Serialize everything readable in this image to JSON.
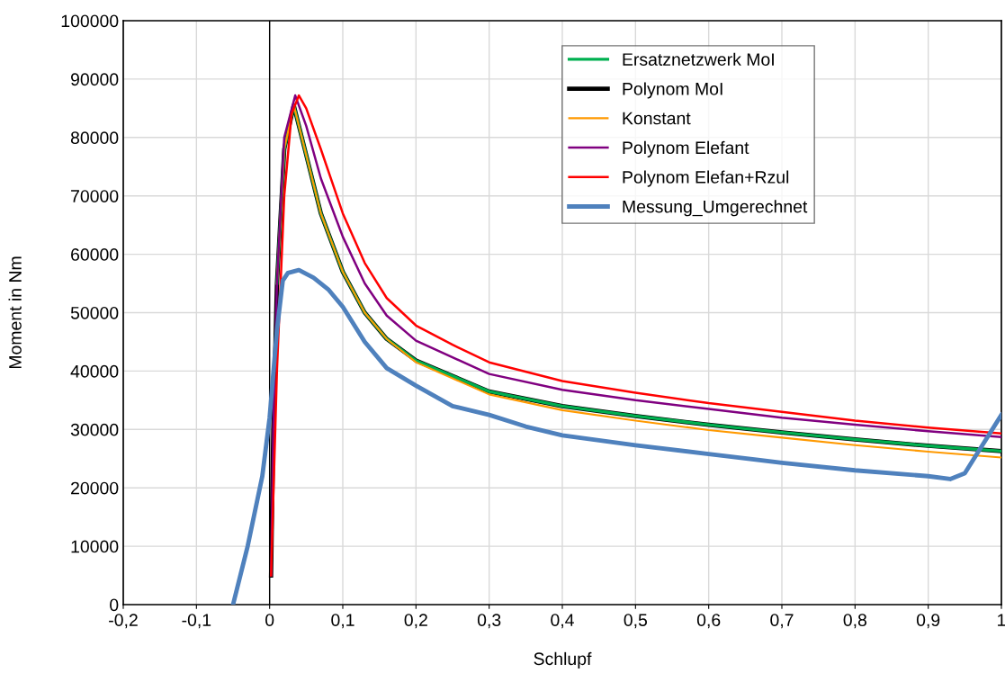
{
  "chart_data": {
    "type": "line",
    "xlabel": "Schlupf",
    "ylabel": "Moment in Nm",
    "xlim": [
      -0.2,
      1
    ],
    "ylim": [
      0,
      100000
    ],
    "xticks": [
      {
        "value": -0.2,
        "label": "-0,2"
      },
      {
        "value": -0.1,
        "label": "-0,1"
      },
      0,
      {
        "value": 0.1,
        "label": "0,1"
      },
      {
        "value": 0.2,
        "label": "0,2"
      },
      {
        "value": 0.3,
        "label": "0,3"
      },
      {
        "value": 0.4,
        "label": "0,4"
      },
      {
        "value": 0.5,
        "label": "0,5"
      },
      {
        "value": 0.6,
        "label": "0,6"
      },
      {
        "value": 0.7,
        "label": "0,7"
      },
      {
        "value": 0.8,
        "label": "0,8"
      },
      {
        "value": 0.9,
        "label": "0,9"
      },
      1
    ],
    "yticks": [
      0,
      10000,
      20000,
      30000,
      40000,
      50000,
      60000,
      70000,
      80000,
      90000,
      100000
    ],
    "grid": true,
    "legend": "top right",
    "line_style": "solid",
    "marker": "none",
    "ref_lines": [
      {
        "axis": "x",
        "value": 0,
        "color": "#000000"
      }
    ],
    "series": [
      {
        "name": "Ersatznetzwerk MoI",
        "color": "#00b050",
        "x": [
          0.01,
          0.02,
          0.033,
          0.05,
          0.07,
          0.1,
          0.13,
          0.16,
          0.2,
          0.3,
          0.4,
          0.5,
          0.6,
          0.7,
          0.8,
          0.9,
          1.0
        ],
        "values": [
          55000,
          78000,
          85500,
          77000,
          67000,
          57000,
          50000,
          45500,
          41800,
          36500,
          34000,
          32300,
          30800,
          29500,
          28300,
          27200,
          26300
        ]
      },
      {
        "name": "Polynom MoI",
        "color": "#000000",
        "x": [
          0.002,
          0.005,
          0.01,
          0.02,
          0.033,
          0.05,
          0.07,
          0.1,
          0.13,
          0.16,
          0.2,
          0.3,
          0.4,
          0.5,
          0.6,
          0.7,
          0.8,
          0.9,
          1.0
        ],
        "values": [
          5000,
          30000,
          55000,
          78000,
          85500,
          77000,
          67000,
          57000,
          50000,
          45500,
          41800,
          36500,
          34000,
          32300,
          30800,
          29500,
          28300,
          27200,
          26300
        ]
      },
      {
        "name": "Konstant",
        "color": "#ff9900",
        "x": [
          0.01,
          0.02,
          0.033,
          0.05,
          0.07,
          0.1,
          0.13,
          0.16,
          0.2,
          0.3,
          0.4,
          0.5,
          0.6,
          0.7,
          0.8,
          0.9,
          1.0
        ],
        "values": [
          55000,
          78000,
          85500,
          77000,
          67000,
          57000,
          50000,
          45500,
          41500,
          36000,
          33300,
          31500,
          29900,
          28600,
          27300,
          26200,
          25200
        ]
      },
      {
        "name": "Polynom Elefant",
        "color": "#800080",
        "x": [
          0.002,
          0.005,
          0.01,
          0.02,
          0.035,
          0.05,
          0.07,
          0.1,
          0.13,
          0.16,
          0.2,
          0.3,
          0.4,
          0.5,
          0.6,
          0.7,
          0.8,
          0.9,
          1.0
        ],
        "values": [
          5000,
          30000,
          55000,
          80000,
          87200,
          82000,
          73000,
          63000,
          55000,
          49500,
          45200,
          39500,
          36800,
          35000,
          33500,
          32000,
          30800,
          29700,
          28700
        ]
      },
      {
        "name": "Polynom Elefan+Rzul",
        "color": "#ff0000",
        "x": [
          0.002,
          0.01,
          0.02,
          0.03,
          0.04,
          0.05,
          0.07,
          0.1,
          0.13,
          0.16,
          0.2,
          0.25,
          0.3,
          0.4,
          0.5,
          0.6,
          0.7,
          0.8,
          0.9,
          1.0
        ],
        "values": [
          5000,
          40000,
          70000,
          84000,
          87200,
          85000,
          78000,
          67000,
          58500,
          52500,
          47800,
          44500,
          41500,
          38300,
          36300,
          34500,
          33000,
          31500,
          30300,
          29300
        ]
      },
      {
        "name": "Messung_Umgerechnet",
        "color": "#4f81bd",
        "x": [
          -0.05,
          -0.03,
          -0.01,
          0,
          0.01,
          0.018,
          0.025,
          0.04,
          0.06,
          0.08,
          0.1,
          0.13,
          0.16,
          0.2,
          0.25,
          0.3,
          0.35,
          0.4,
          0.5,
          0.6,
          0.7,
          0.8,
          0.9,
          0.93,
          0.95,
          0.97,
          1.0
        ],
        "values": [
          0,
          10000,
          22000,
          32000,
          47000,
          55500,
          56800,
          57300,
          56000,
          54000,
          51000,
          45000,
          40500,
          37500,
          34000,
          32500,
          30500,
          29000,
          27300,
          25800,
          24300,
          23000,
          22000,
          21500,
          22500,
          26500,
          32500
        ]
      }
    ]
  }
}
